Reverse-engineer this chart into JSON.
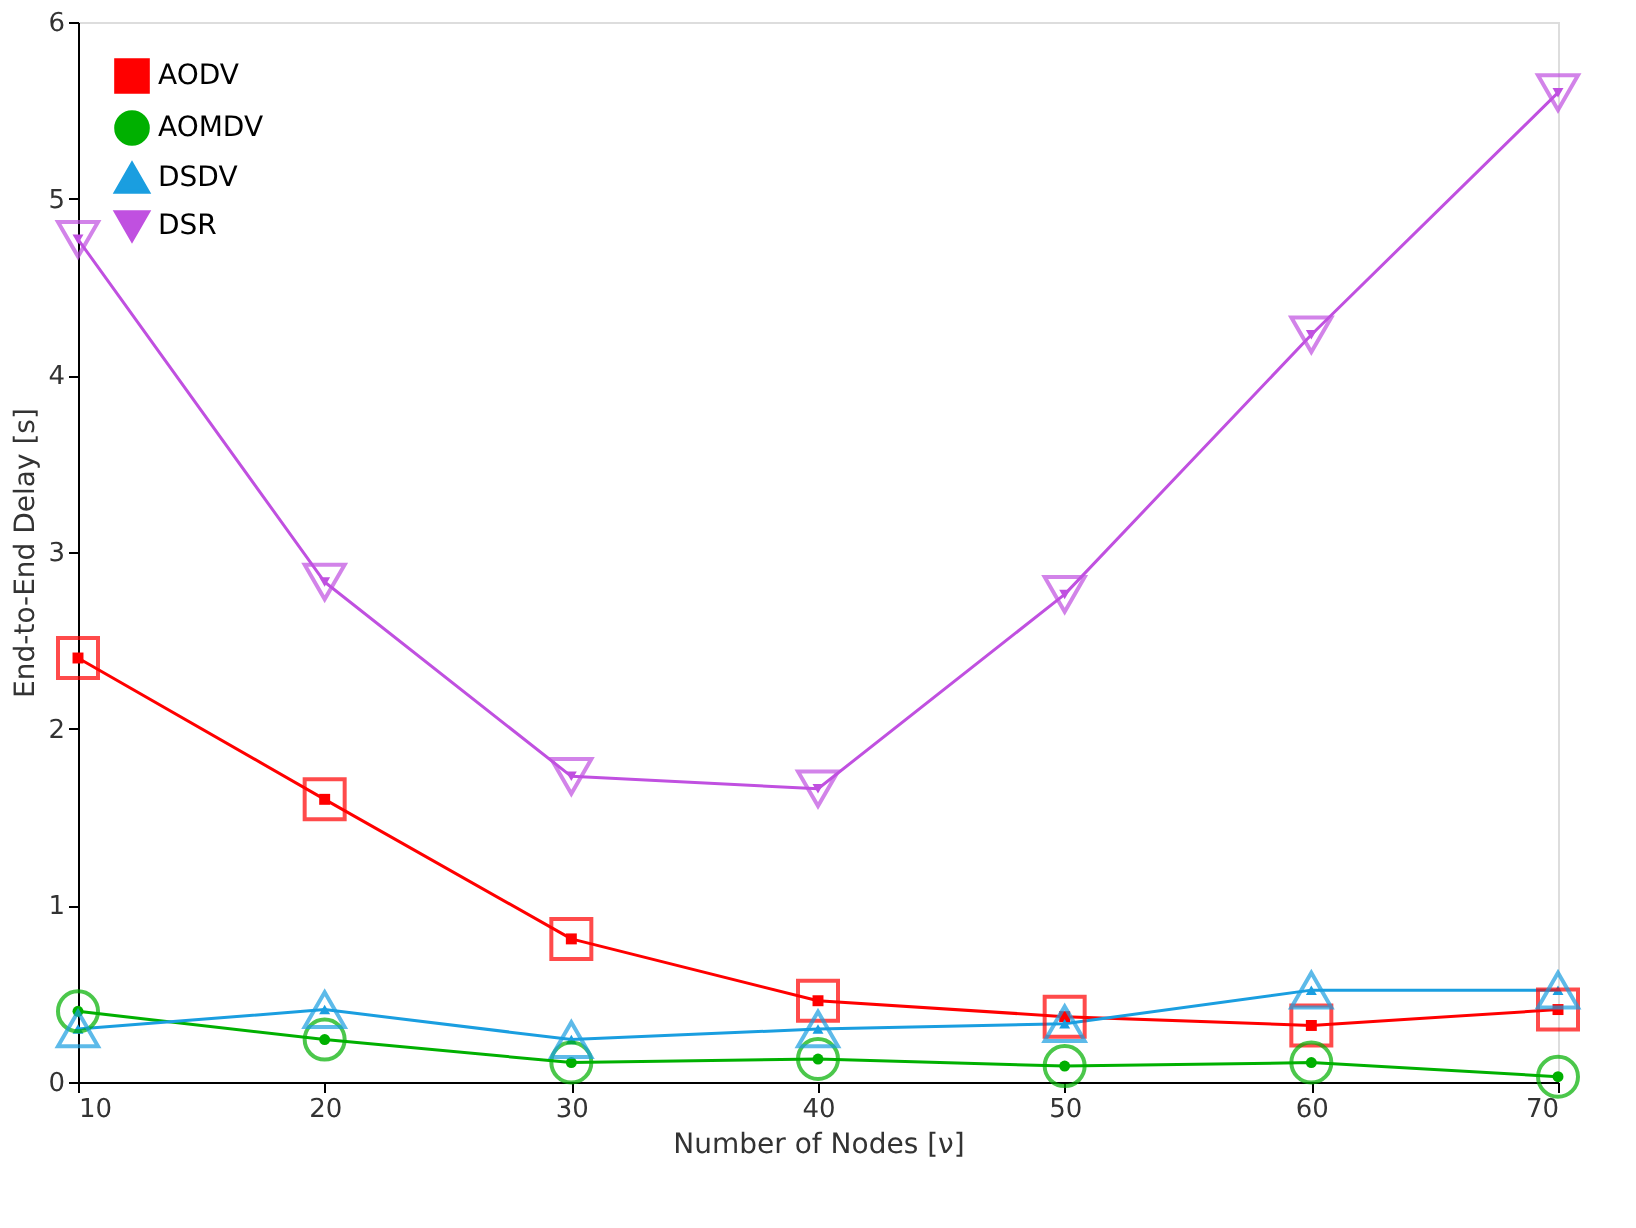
{
  "chart_data": {
    "type": "line",
    "xlabel": "Number of Nodes [ν]",
    "ylabel": "End-to-End Delay  [s]",
    "x": [
      10,
      20,
      30,
      40,
      50,
      60,
      70
    ],
    "series": [
      {
        "name": "AODV",
        "color": "#ff0000",
        "marker": "square",
        "values": [
          2.4,
          1.6,
          0.81,
          0.46,
          0.37,
          0.32,
          0.41
        ]
      },
      {
        "name": "AOMDV",
        "color": "#00b000",
        "marker": "circle",
        "values": [
          0.4,
          0.24,
          0.11,
          0.13,
          0.09,
          0.11,
          0.03
        ]
      },
      {
        "name": "DSDV",
        "color": "#1a9ee0",
        "marker": "triangle",
        "values": [
          0.3,
          0.41,
          0.24,
          0.3,
          0.33,
          0.52,
          0.52
        ]
      },
      {
        "name": "DSR",
        "color": "#c050e0",
        "marker": "triangle-down",
        "values": [
          4.77,
          2.83,
          1.73,
          1.66,
          2.76,
          4.23,
          5.6
        ]
      }
    ],
    "xlim": [
      10,
      70
    ],
    "xticks": [
      10,
      20,
      30,
      40,
      50,
      60,
      70
    ],
    "ylim": [
      0,
      6
    ],
    "yticks": [
      0,
      1,
      2,
      3,
      4,
      5,
      6
    ],
    "grid": false,
    "legend": "top left",
    "line_style": "solid"
  }
}
